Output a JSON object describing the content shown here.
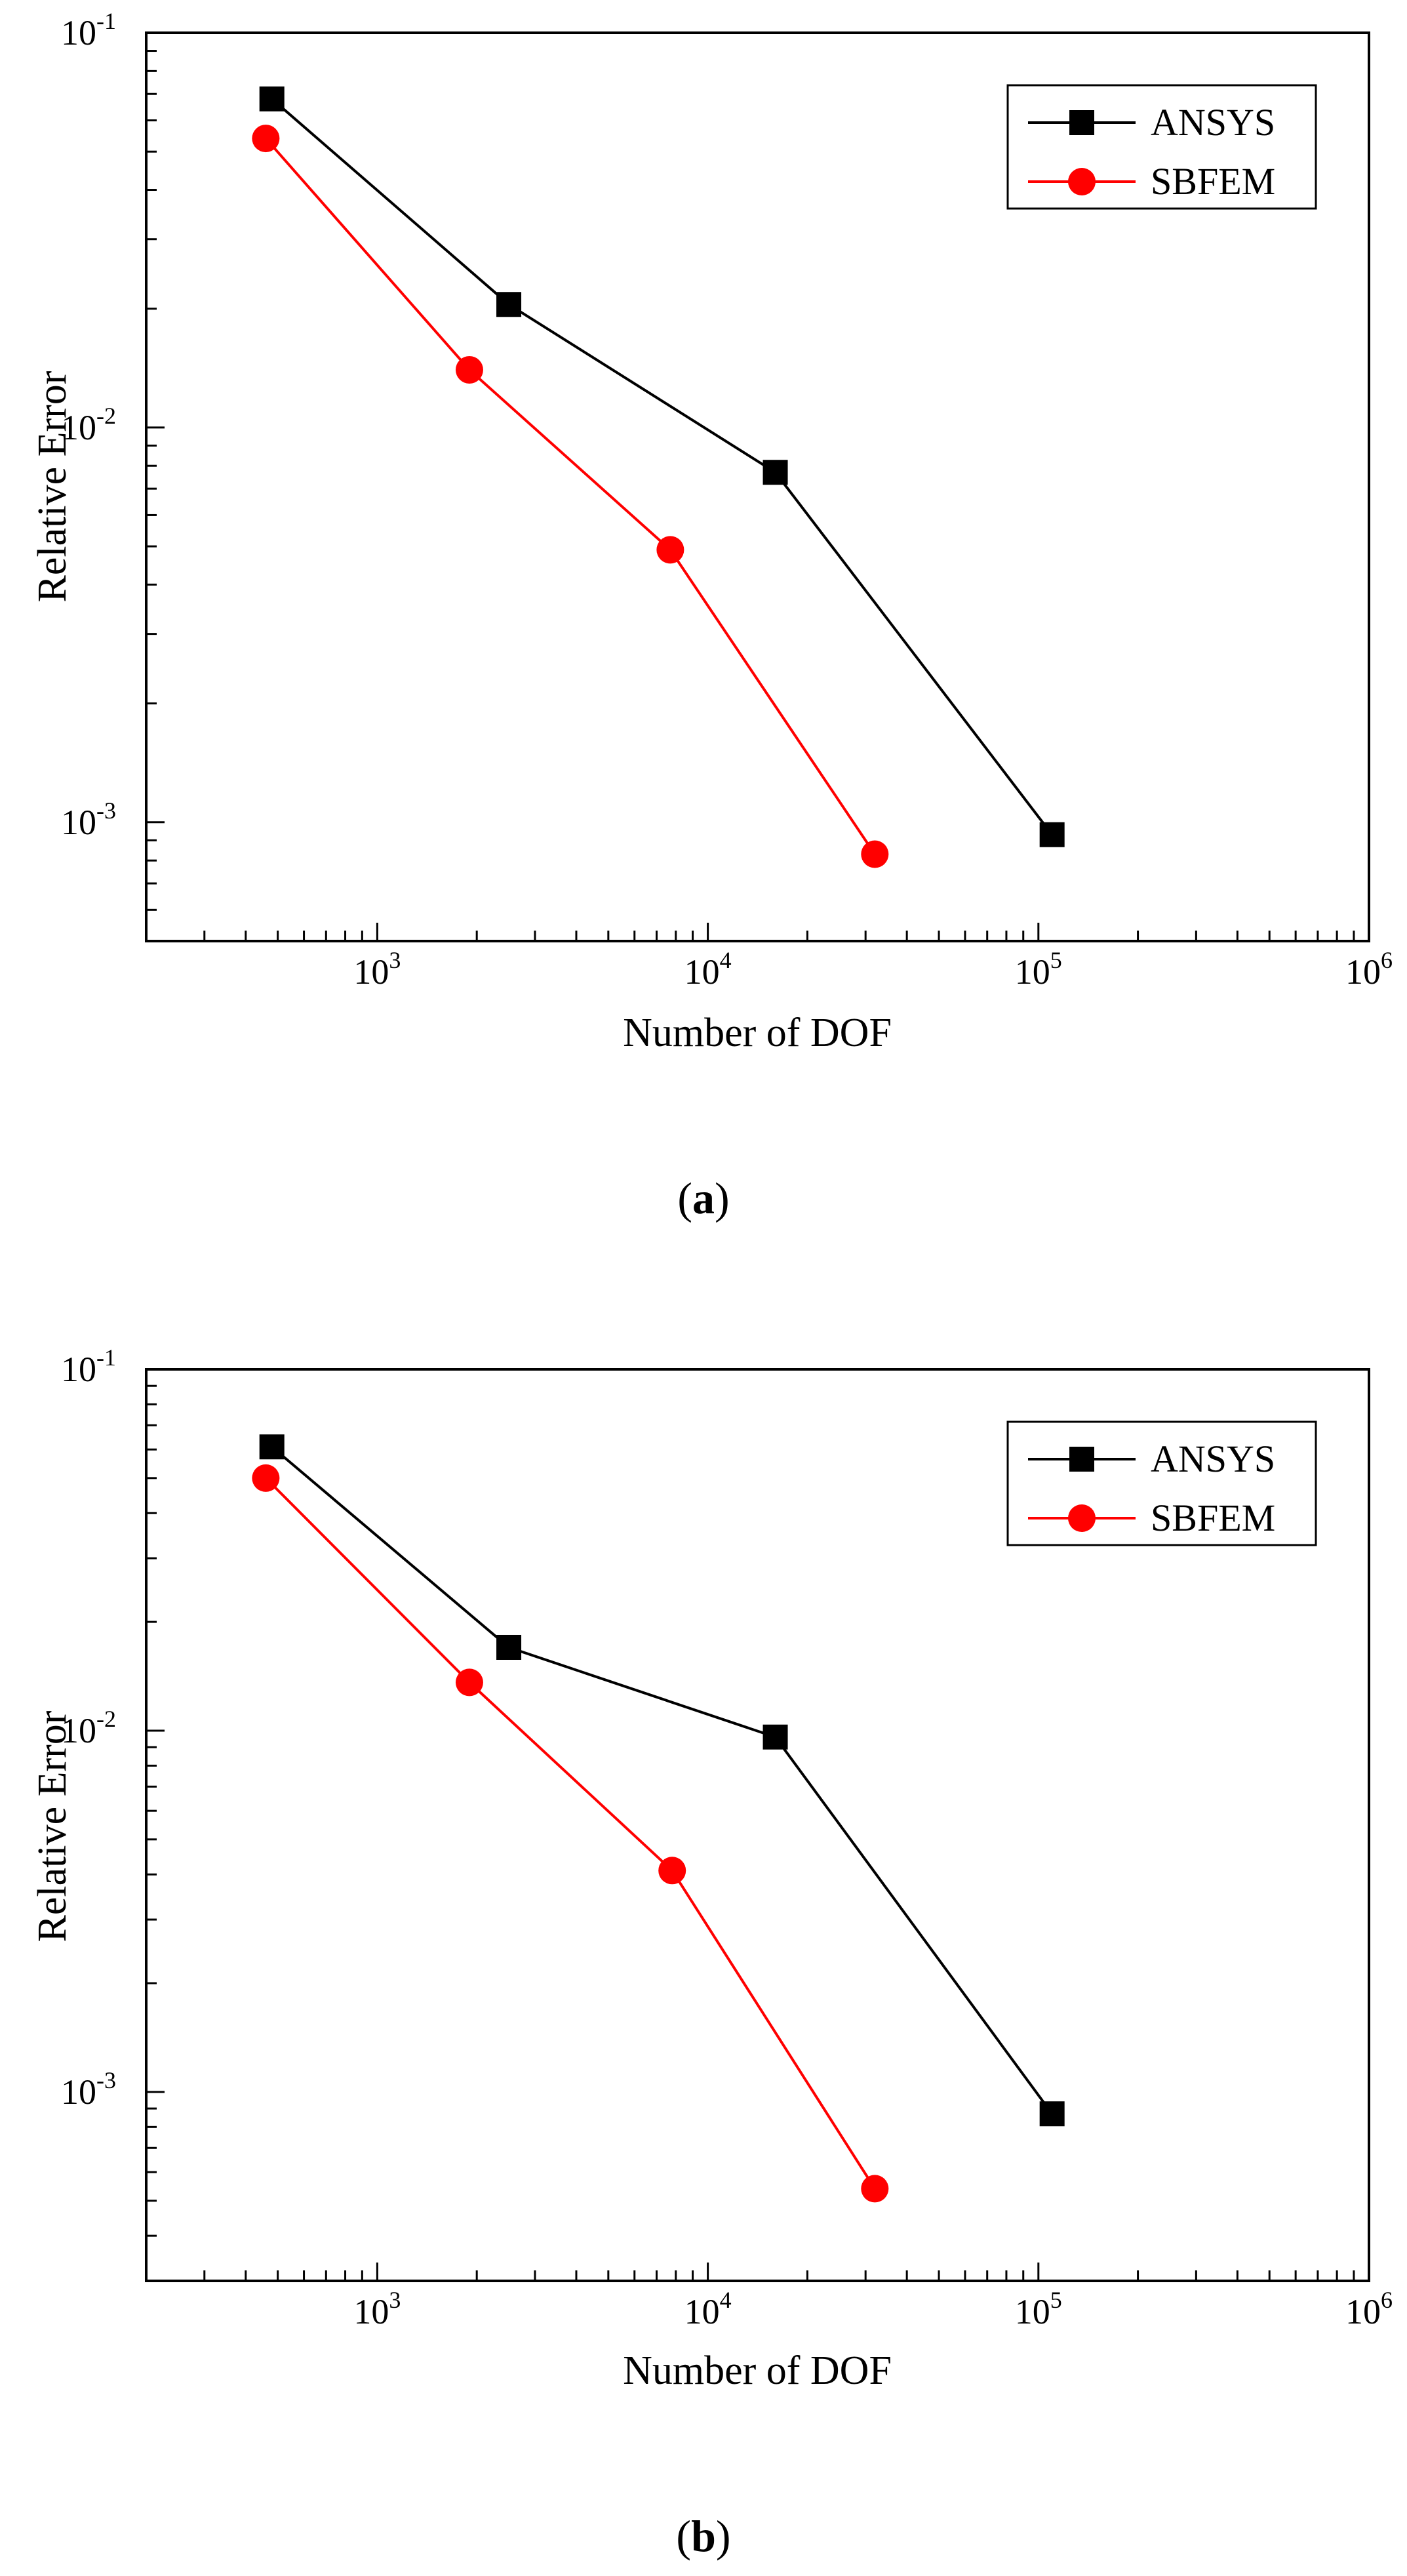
{
  "chart_data": [
    {
      "type": "line",
      "panel": "a",
      "caption_label": "a",
      "xscale": "log",
      "yscale": "log",
      "xlabel": "Number of DOF",
      "ylabel": "Relative Error",
      "xlim": [
        200,
        1000000
      ],
      "ylim": [
        0.0005,
        0.1
      ],
      "x_ticks": [
        {
          "value": 1000,
          "base": "10",
          "exp": "3"
        },
        {
          "value": 10000,
          "base": "10",
          "exp": "4"
        },
        {
          "value": 100000,
          "base": "10",
          "exp": "5"
        },
        {
          "value": 1000000,
          "base": "10",
          "exp": "6"
        }
      ],
      "y_ticks": [
        {
          "value": 0.001,
          "base": "10",
          "exp": "-3"
        },
        {
          "value": 0.01,
          "base": "10",
          "exp": "-2"
        },
        {
          "value": 0.1,
          "base": "10",
          "exp": "-1"
        }
      ],
      "legend_position": "top-right",
      "series": [
        {
          "name": "ANSYS",
          "color": "#000000",
          "marker": "square",
          "x": [
            480,
            2500,
            16000,
            110000
          ],
          "y": [
            0.068,
            0.0205,
            0.0077,
            0.00093
          ]
        },
        {
          "name": "SBFEM",
          "color": "#ff0000",
          "marker": "circle",
          "x": [
            460,
            1900,
            7700,
            32000
          ],
          "y": [
            0.054,
            0.014,
            0.0049,
            0.00083
          ]
        }
      ]
    },
    {
      "type": "line",
      "panel": "b",
      "caption_label": "b",
      "xscale": "log",
      "yscale": "log",
      "xlabel": "Number of DOF",
      "ylabel": "Relative Error",
      "xlim": [
        200,
        1000000
      ],
      "ylim": [
        0.0003,
        0.1
      ],
      "x_ticks": [
        {
          "value": 1000,
          "base": "10",
          "exp": "3"
        },
        {
          "value": 10000,
          "base": "10",
          "exp": "4"
        },
        {
          "value": 100000,
          "base": "10",
          "exp": "5"
        },
        {
          "value": 1000000,
          "base": "10",
          "exp": "6"
        }
      ],
      "y_ticks": [
        {
          "value": 0.001,
          "base": "10",
          "exp": "-3"
        },
        {
          "value": 0.01,
          "base": "10",
          "exp": "-2"
        },
        {
          "value": 0.1,
          "base": "10",
          "exp": "-1"
        }
      ],
      "legend_position": "top-right",
      "series": [
        {
          "name": "ANSYS",
          "color": "#000000",
          "marker": "square",
          "x": [
            480,
            2500,
            16000,
            110000
          ],
          "y": [
            0.061,
            0.017,
            0.0096,
            0.00087
          ]
        },
        {
          "name": "SBFEM",
          "color": "#ff0000",
          "marker": "circle",
          "x": [
            460,
            1900,
            7800,
            32000
          ],
          "y": [
            0.05,
            0.0136,
            0.0041,
            0.00054
          ]
        }
      ]
    }
  ]
}
